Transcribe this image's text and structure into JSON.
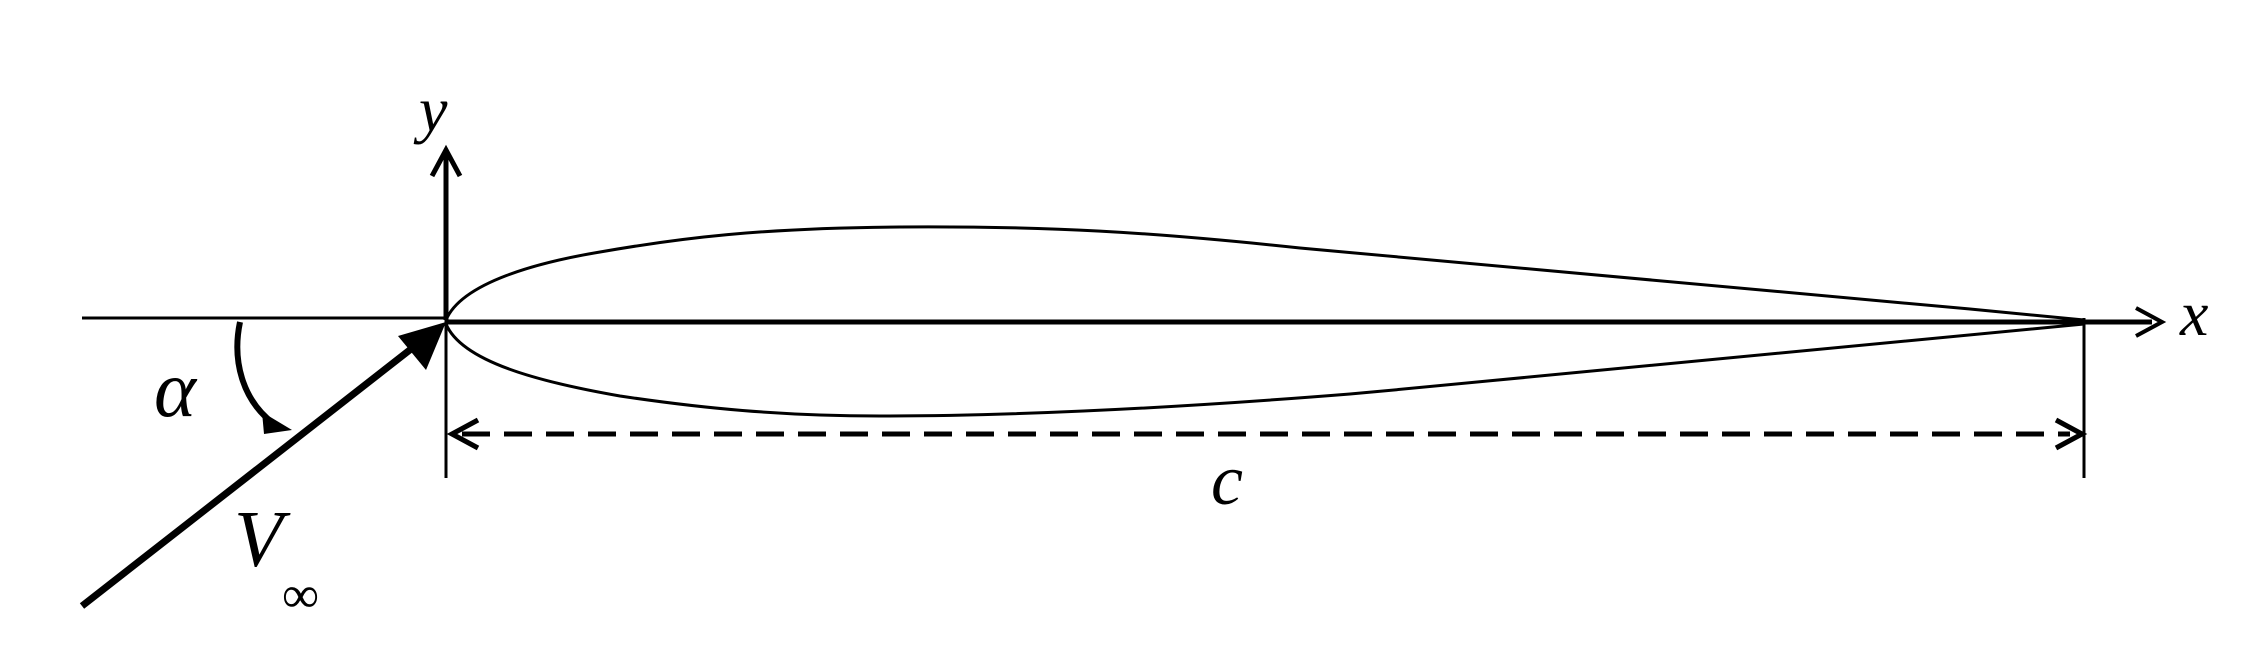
{
  "diagram": {
    "labels": {
      "y_axis": "y",
      "x_axis": "x",
      "chord": "c",
      "angle_of_attack": "α",
      "freestream_symbol": "V",
      "freestream_subscript": "∞"
    },
    "colors": {
      "ink": "#000000",
      "background": "#ffffff"
    }
  }
}
